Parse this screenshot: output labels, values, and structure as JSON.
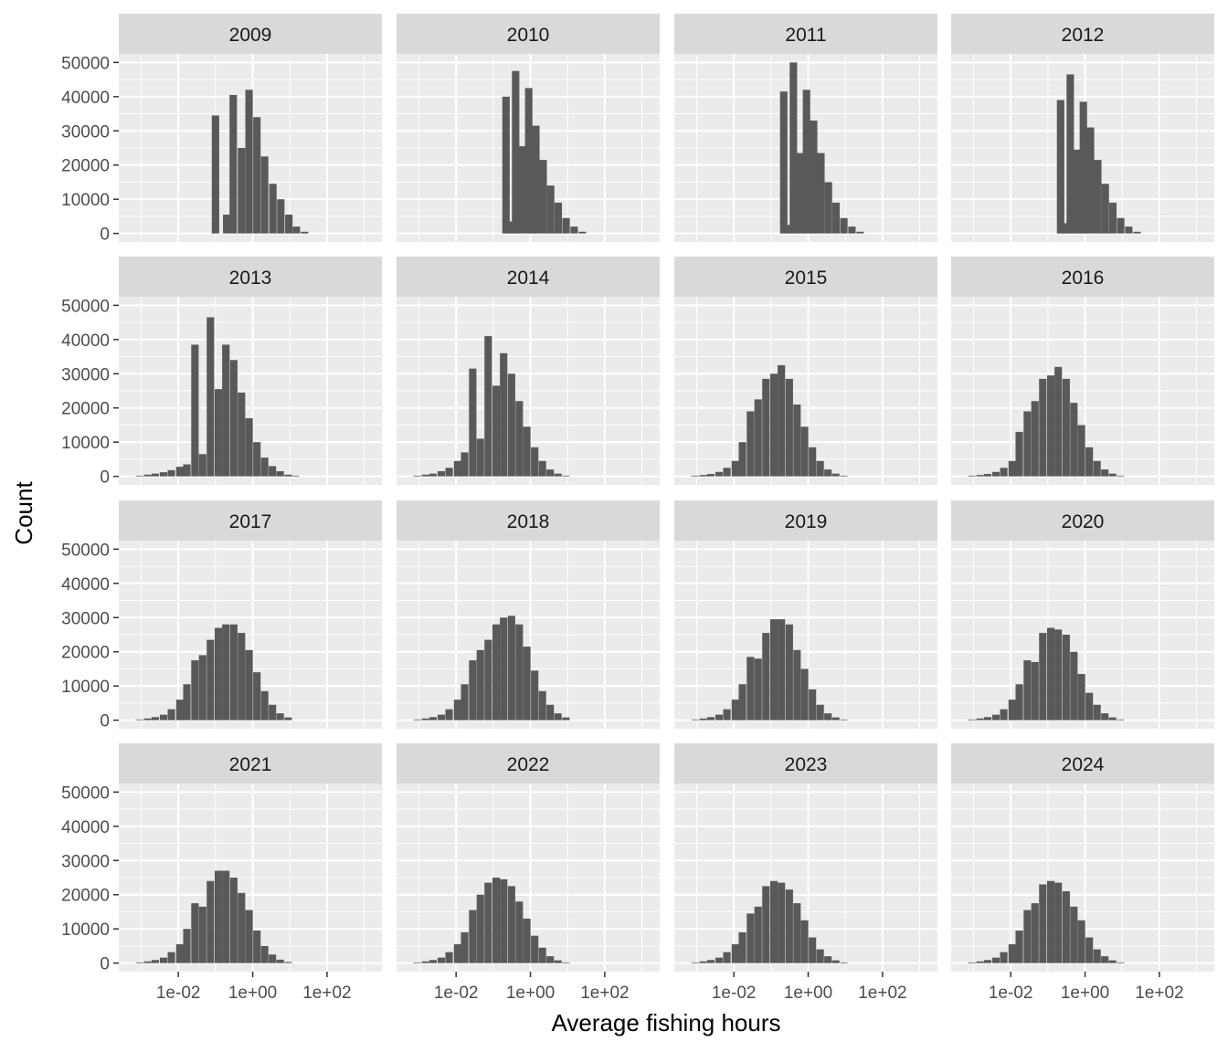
{
  "chart_data": {
    "type": "bar",
    "subtype": "faceted-histogram",
    "xlabel": "Average fishing hours",
    "ylabel": "Count",
    "x_scale": "log10",
    "x_range": [
      0.00025,
      3000
    ],
    "x_ticks": [
      0.01,
      1,
      100
    ],
    "x_tick_labels": [
      "1e-02",
      "1e+00",
      "1e+02"
    ],
    "y_range": [
      -2500,
      52500
    ],
    "y_ticks": [
      0,
      10000,
      20000,
      30000,
      40000,
      50000
    ],
    "y_tick_labels": [
      "0",
      "10000",
      "20000",
      "30000",
      "40000",
      "50000"
    ],
    "grid": true,
    "bar_color": "#595959",
    "panel_background": "#ebebeb",
    "strip_background": "#d9d9d9",
    "gridline_color": "#ffffff",
    "facets": [
      {
        "label": "2009",
        "bins": [
          [
            0.1,
            34500
          ],
          [
            0.2,
            5500
          ],
          [
            0.3,
            40500
          ],
          [
            0.5,
            25000
          ],
          [
            0.8,
            42000
          ],
          [
            1.3,
            34000
          ],
          [
            2.1,
            22500
          ],
          [
            3.5,
            14500
          ],
          [
            5.7,
            10000
          ],
          [
            9.4,
            5500
          ],
          [
            15,
            2000
          ],
          [
            25,
            500
          ]
        ]
      },
      {
        "label": "2010",
        "bins": [
          [
            0.22,
            40000
          ],
          [
            0.3,
            3500
          ],
          [
            0.4,
            47500
          ],
          [
            0.6,
            25500
          ],
          [
            0.9,
            42500
          ],
          [
            1.4,
            31500
          ],
          [
            2.2,
            21500
          ],
          [
            3.5,
            14000
          ],
          [
            5.6,
            9000
          ],
          [
            9.1,
            4500
          ],
          [
            15,
            2000
          ],
          [
            25,
            500
          ]
        ]
      },
      {
        "label": "2011",
        "bins": [
          [
            0.22,
            41500
          ],
          [
            0.3,
            2500
          ],
          [
            0.4,
            50000
          ],
          [
            0.6,
            23500
          ],
          [
            0.9,
            42000
          ],
          [
            1.4,
            33000
          ],
          [
            2.2,
            23500
          ],
          [
            3.5,
            15000
          ],
          [
            5.6,
            9000
          ],
          [
            9.1,
            4500
          ],
          [
            15,
            2000
          ],
          [
            25,
            500
          ]
        ]
      },
      {
        "label": "2012",
        "bins": [
          [
            0.22,
            39000
          ],
          [
            0.3,
            3000
          ],
          [
            0.4,
            46500
          ],
          [
            0.6,
            24500
          ],
          [
            0.9,
            38500
          ],
          [
            1.4,
            31000
          ],
          [
            2.2,
            21500
          ],
          [
            3.5,
            14500
          ],
          [
            5.6,
            9000
          ],
          [
            9.1,
            4500
          ],
          [
            15,
            2000
          ],
          [
            25,
            500
          ]
        ]
      },
      {
        "label": "2013",
        "bins": [
          [
            0.0009,
            200
          ],
          [
            0.0015,
            500
          ],
          [
            0.0024,
            800
          ],
          [
            0.004,
            1200
          ],
          [
            0.0065,
            1800
          ],
          [
            0.011,
            2800
          ],
          [
            0.017,
            3500
          ],
          [
            0.028,
            38500
          ],
          [
            0.045,
            6500
          ],
          [
            0.073,
            46500
          ],
          [
            0.12,
            25500
          ],
          [
            0.19,
            38500
          ],
          [
            0.31,
            34000
          ],
          [
            0.5,
            24500
          ],
          [
            0.8,
            17000
          ],
          [
            1.3,
            10000
          ],
          [
            2.1,
            5500
          ],
          [
            3.4,
            3000
          ],
          [
            5.5,
            1500
          ],
          [
            9,
            500
          ],
          [
            14,
            200
          ]
        ]
      },
      {
        "label": "2014",
        "bins": [
          [
            0.0009,
            200
          ],
          [
            0.0015,
            500
          ],
          [
            0.0024,
            800
          ],
          [
            0.004,
            1500
          ],
          [
            0.0065,
            2500
          ],
          [
            0.011,
            4500
          ],
          [
            0.017,
            7000
          ],
          [
            0.028,
            31500
          ],
          [
            0.045,
            11000
          ],
          [
            0.073,
            41000
          ],
          [
            0.12,
            26500
          ],
          [
            0.19,
            36000
          ],
          [
            0.31,
            30000
          ],
          [
            0.5,
            22000
          ],
          [
            0.8,
            14500
          ],
          [
            1.3,
            8500
          ],
          [
            2.1,
            4500
          ],
          [
            3.4,
            2000
          ],
          [
            5.5,
            800
          ],
          [
            9,
            200
          ]
        ]
      },
      {
        "label": "2015",
        "bins": [
          [
            0.0009,
            200
          ],
          [
            0.0015,
            400
          ],
          [
            0.0024,
            700
          ],
          [
            0.004,
            1300
          ],
          [
            0.0065,
            2500
          ],
          [
            0.011,
            4500
          ],
          [
            0.017,
            10000
          ],
          [
            0.028,
            19000
          ],
          [
            0.045,
            22500
          ],
          [
            0.073,
            28500
          ],
          [
            0.12,
            30000
          ],
          [
            0.19,
            32500
          ],
          [
            0.31,
            28500
          ],
          [
            0.5,
            21000
          ],
          [
            0.8,
            14500
          ],
          [
            1.3,
            8500
          ],
          [
            2.1,
            4500
          ],
          [
            3.4,
            2000
          ],
          [
            5.5,
            800
          ],
          [
            9,
            200
          ]
        ]
      },
      {
        "label": "2016",
        "bins": [
          [
            0.0009,
            200
          ],
          [
            0.0015,
            400
          ],
          [
            0.0024,
            700
          ],
          [
            0.004,
            1300
          ],
          [
            0.0065,
            2500
          ],
          [
            0.011,
            4500
          ],
          [
            0.017,
            13000
          ],
          [
            0.028,
            19000
          ],
          [
            0.045,
            22000
          ],
          [
            0.073,
            28500
          ],
          [
            0.12,
            29500
          ],
          [
            0.19,
            32000
          ],
          [
            0.31,
            28500
          ],
          [
            0.5,
            21500
          ],
          [
            0.8,
            15000
          ],
          [
            1.3,
            8500
          ],
          [
            2.1,
            4500
          ],
          [
            3.4,
            2000
          ],
          [
            5.5,
            800
          ],
          [
            9,
            200
          ]
        ]
      },
      {
        "label": "2017",
        "bins": [
          [
            0.0009,
            200
          ],
          [
            0.0015,
            500
          ],
          [
            0.0024,
            900
          ],
          [
            0.004,
            1600
          ],
          [
            0.0065,
            3200
          ],
          [
            0.011,
            6000
          ],
          [
            0.017,
            10500
          ],
          [
            0.028,
            17500
          ],
          [
            0.045,
            19000
          ],
          [
            0.073,
            23500
          ],
          [
            0.12,
            27000
          ],
          [
            0.19,
            28000
          ],
          [
            0.31,
            28000
          ],
          [
            0.5,
            25500
          ],
          [
            0.8,
            20500
          ],
          [
            1.3,
            14000
          ],
          [
            2.1,
            8500
          ],
          [
            3.4,
            4500
          ],
          [
            5.5,
            2000
          ],
          [
            9,
            800
          ]
        ]
      },
      {
        "label": "2018",
        "bins": [
          [
            0.0009,
            200
          ],
          [
            0.0015,
            500
          ],
          [
            0.0024,
            900
          ],
          [
            0.004,
            1600
          ],
          [
            0.0065,
            3200
          ],
          [
            0.011,
            6000
          ],
          [
            0.017,
            10500
          ],
          [
            0.028,
            17500
          ],
          [
            0.045,
            20500
          ],
          [
            0.073,
            23500
          ],
          [
            0.12,
            28000
          ],
          [
            0.19,
            30000
          ],
          [
            0.31,
            30500
          ],
          [
            0.5,
            28000
          ],
          [
            0.8,
            21500
          ],
          [
            1.3,
            14500
          ],
          [
            2.1,
            8500
          ],
          [
            3.4,
            4500
          ],
          [
            5.5,
            2000
          ],
          [
            9,
            800
          ]
        ]
      },
      {
        "label": "2019",
        "bins": [
          [
            0.0009,
            200
          ],
          [
            0.0015,
            500
          ],
          [
            0.0024,
            900
          ],
          [
            0.004,
            1600
          ],
          [
            0.0065,
            3200
          ],
          [
            0.011,
            6000
          ],
          [
            0.017,
            10500
          ],
          [
            0.028,
            18500
          ],
          [
            0.045,
            18000
          ],
          [
            0.073,
            25500
          ],
          [
            0.12,
            29500
          ],
          [
            0.19,
            29500
          ],
          [
            0.31,
            28000
          ],
          [
            0.5,
            20500
          ],
          [
            0.8,
            15000
          ],
          [
            1.3,
            9000
          ],
          [
            2.1,
            4500
          ],
          [
            3.4,
            2000
          ],
          [
            5.5,
            800
          ],
          [
            9,
            200
          ]
        ]
      },
      {
        "label": "2020",
        "bins": [
          [
            0.0009,
            200
          ],
          [
            0.0015,
            500
          ],
          [
            0.0024,
            900
          ],
          [
            0.004,
            1600
          ],
          [
            0.0065,
            3200
          ],
          [
            0.011,
            6000
          ],
          [
            0.017,
            10500
          ],
          [
            0.028,
            17500
          ],
          [
            0.045,
            17000
          ],
          [
            0.073,
            25500
          ],
          [
            0.12,
            27000
          ],
          [
            0.19,
            26500
          ],
          [
            0.31,
            25000
          ],
          [
            0.5,
            20000
          ],
          [
            0.8,
            13500
          ],
          [
            1.3,
            8000
          ],
          [
            2.1,
            4500
          ],
          [
            3.4,
            2000
          ],
          [
            5.5,
            800
          ],
          [
            9,
            200
          ]
        ]
      },
      {
        "label": "2021",
        "bins": [
          [
            0.0009,
            200
          ],
          [
            0.0015,
            500
          ],
          [
            0.0024,
            900
          ],
          [
            0.004,
            1600
          ],
          [
            0.0065,
            3200
          ],
          [
            0.011,
            5500
          ],
          [
            0.017,
            10000
          ],
          [
            0.028,
            17500
          ],
          [
            0.045,
            16500
          ],
          [
            0.073,
            24000
          ],
          [
            0.12,
            27000
          ],
          [
            0.19,
            27000
          ],
          [
            0.31,
            25000
          ],
          [
            0.5,
            20500
          ],
          [
            0.8,
            15500
          ],
          [
            1.3,
            9500
          ],
          [
            2.1,
            5000
          ],
          [
            3.4,
            2500
          ],
          [
            5.5,
            1000
          ],
          [
            9,
            300
          ]
        ]
      },
      {
        "label": "2022",
        "bins": [
          [
            0.0009,
            200
          ],
          [
            0.0015,
            500
          ],
          [
            0.0024,
            900
          ],
          [
            0.004,
            1600
          ],
          [
            0.0065,
            3200
          ],
          [
            0.011,
            5500
          ],
          [
            0.017,
            9000
          ],
          [
            0.028,
            15500
          ],
          [
            0.045,
            20000
          ],
          [
            0.073,
            23500
          ],
          [
            0.12,
            25000
          ],
          [
            0.19,
            24500
          ],
          [
            0.31,
            22500
          ],
          [
            0.5,
            18000
          ],
          [
            0.8,
            13000
          ],
          [
            1.3,
            8000
          ],
          [
            2.1,
            4500
          ],
          [
            3.4,
            2000
          ],
          [
            5.5,
            800
          ],
          [
            9,
            200
          ]
        ]
      },
      {
        "label": "2023",
        "bins": [
          [
            0.0009,
            200
          ],
          [
            0.0015,
            500
          ],
          [
            0.0024,
            900
          ],
          [
            0.004,
            1600
          ],
          [
            0.0065,
            3200
          ],
          [
            0.011,
            5500
          ],
          [
            0.017,
            9000
          ],
          [
            0.028,
            14500
          ],
          [
            0.045,
            16500
          ],
          [
            0.073,
            22500
          ],
          [
            0.12,
            24000
          ],
          [
            0.19,
            23500
          ],
          [
            0.31,
            21500
          ],
          [
            0.5,
            17500
          ],
          [
            0.8,
            12500
          ],
          [
            1.3,
            7500
          ],
          [
            2.1,
            4000
          ],
          [
            3.4,
            2000
          ],
          [
            5.5,
            800
          ],
          [
            9,
            200
          ]
        ]
      },
      {
        "label": "2024",
        "bins": [
          [
            0.0009,
            200
          ],
          [
            0.0015,
            500
          ],
          [
            0.0024,
            900
          ],
          [
            0.004,
            1600
          ],
          [
            0.0065,
            3200
          ],
          [
            0.011,
            5500
          ],
          [
            0.017,
            9500
          ],
          [
            0.028,
            15500
          ],
          [
            0.045,
            17500
          ],
          [
            0.073,
            23000
          ],
          [
            0.12,
            24000
          ],
          [
            0.19,
            23500
          ],
          [
            0.31,
            21000
          ],
          [
            0.5,
            16500
          ],
          [
            0.8,
            12500
          ],
          [
            1.3,
            7500
          ],
          [
            2.1,
            4000
          ],
          [
            3.4,
            2000
          ],
          [
            5.5,
            800
          ],
          [
            9,
            200
          ]
        ]
      }
    ]
  }
}
